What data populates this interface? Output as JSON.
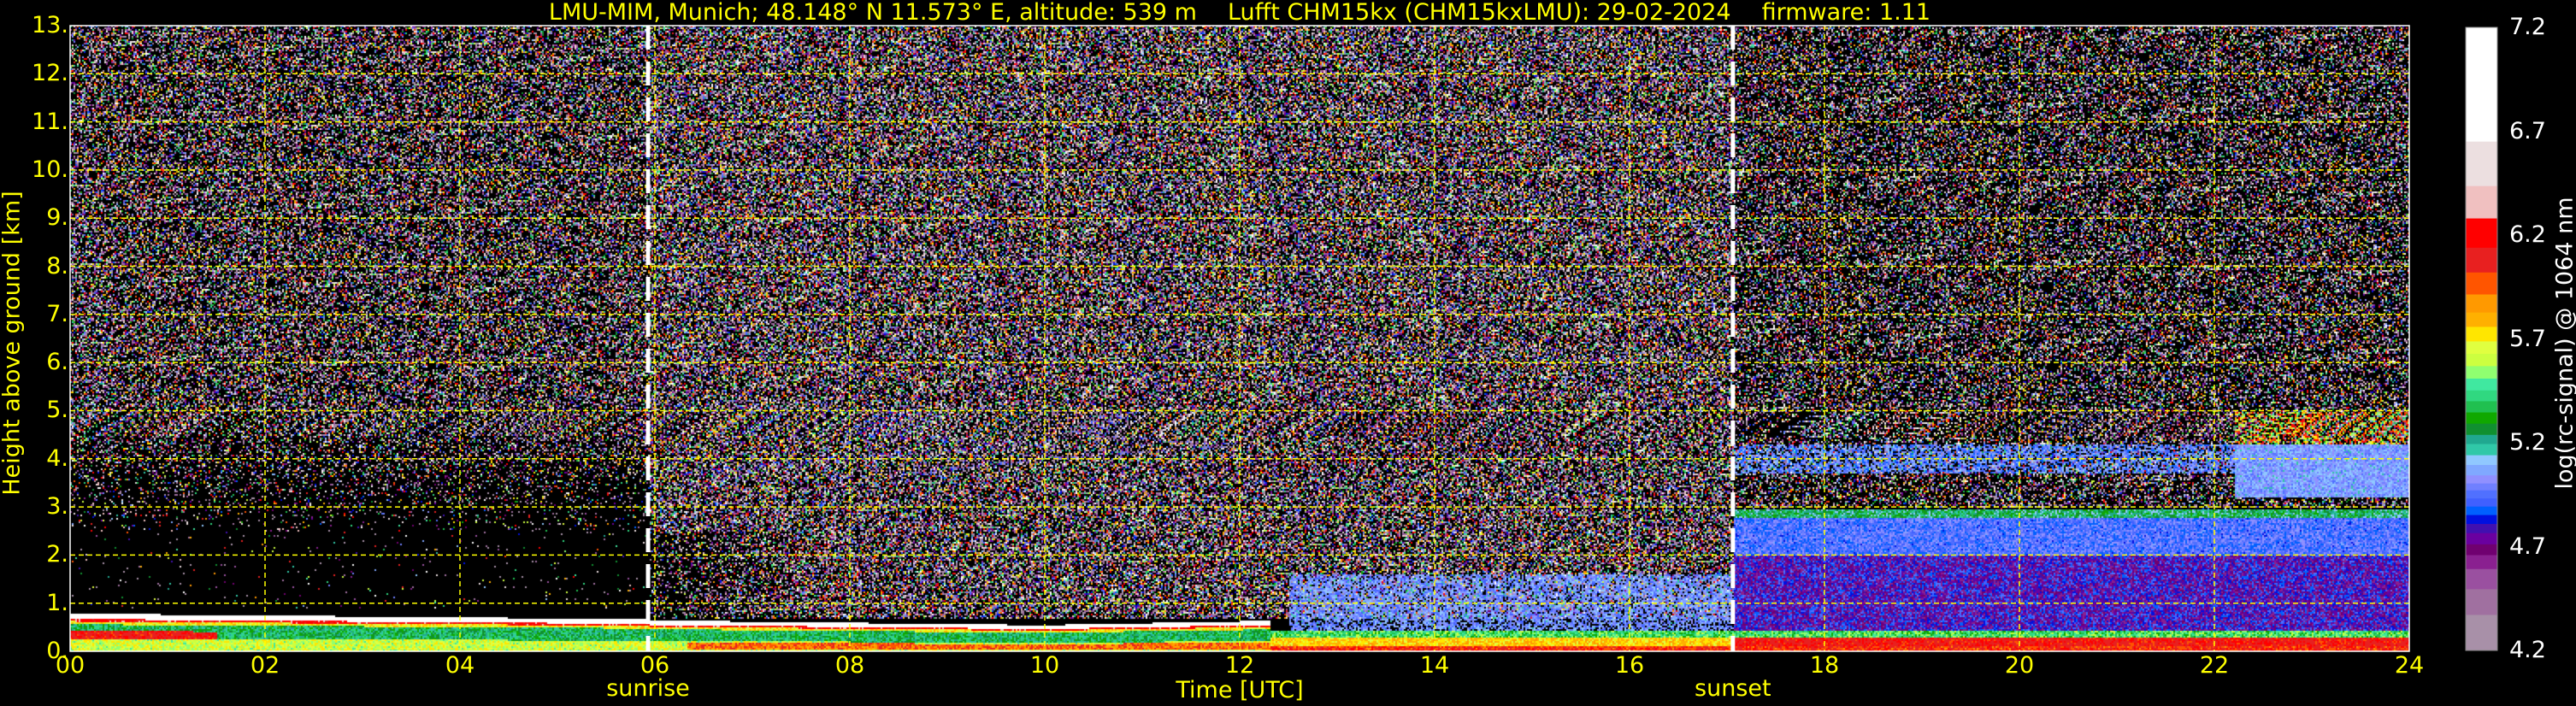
{
  "title": {
    "site": "LMU-MIM, Munich; 48.148° N 11.573° E, altitude: 539 m",
    "instrument": "Lufft CHM15kx (CHM15kxLMU): 29-02-2024",
    "firmware": "firmware: 1.11"
  },
  "chart_data": {
    "type": "heatmap",
    "xlabel": "Time [UTC]",
    "ylabel": "Height above ground [km]",
    "xlim": [
      0,
      24
    ],
    "ylim": [
      0,
      13
    ],
    "x_ticks": [
      {
        "value": 0,
        "label": "00"
      },
      {
        "value": 2,
        "label": "02"
      },
      {
        "value": 4,
        "label": "04"
      },
      {
        "value": 6,
        "label": "06"
      },
      {
        "value": 8,
        "label": "08"
      },
      {
        "value": 10,
        "label": "10"
      },
      {
        "value": 12,
        "label": "12"
      },
      {
        "value": 14,
        "label": "14"
      },
      {
        "value": 16,
        "label": "16"
      },
      {
        "value": 18,
        "label": "18"
      },
      {
        "value": 20,
        "label": "20"
      },
      {
        "value": 22,
        "label": "22"
      },
      {
        "value": 24,
        "label": "24"
      }
    ],
    "y_ticks": [
      {
        "value": 0,
        "label": "0."
      },
      {
        "value": 1,
        "label": "1."
      },
      {
        "value": 2,
        "label": "2."
      },
      {
        "value": 3,
        "label": "3."
      },
      {
        "value": 4,
        "label": "4."
      },
      {
        "value": 5,
        "label": "5."
      },
      {
        "value": 6,
        "label": "6."
      },
      {
        "value": 7,
        "label": "7."
      },
      {
        "value": 8,
        "label": "8."
      },
      {
        "value": 9,
        "label": "9."
      },
      {
        "value": 10,
        "label": "10."
      },
      {
        "value": 11,
        "label": "11."
      },
      {
        "value": 12,
        "label": "12."
      },
      {
        "value": 13,
        "label": "13."
      }
    ],
    "grid": true,
    "grid_color": "#ffff00",
    "annotations": [
      {
        "label": "sunrise",
        "time": 5.93
      },
      {
        "label": "sunset",
        "time": 17.06
      }
    ],
    "colorbar": {
      "label": "log(rc-signal) @ 1064 nm",
      "range": [
        4.2,
        7.2
      ],
      "ticks": [
        "4.2",
        "4.7",
        "5.2",
        "5.7",
        "6.2",
        "6.7",
        "7.2"
      ],
      "levels": [
        {
          "from": 4.2,
          "to": 4.373,
          "color": "#a890a8"
        },
        {
          "from": 4.373,
          "to": 4.497,
          "color": "#a070a0"
        },
        {
          "from": 4.497,
          "to": 4.594,
          "color": "#9a50a0"
        },
        {
          "from": 4.594,
          "to": 4.661,
          "color": "#8a2090"
        },
        {
          "from": 4.661,
          "to": 4.713,
          "color": "#700070"
        },
        {
          "from": 4.713,
          "to": 4.767,
          "color": "#6a00a0"
        },
        {
          "from": 4.767,
          "to": 4.811,
          "color": "#4010b0"
        },
        {
          "from": 4.811,
          "to": 4.854,
          "color": "#0010e0"
        },
        {
          "from": 4.854,
          "to": 4.895,
          "color": "#0060ff"
        },
        {
          "from": 4.895,
          "to": 4.934,
          "color": "#4060ff"
        },
        {
          "from": 4.934,
          "to": 4.973,
          "color": "#5070ff"
        },
        {
          "from": 4.973,
          "to": 5.006,
          "color": "#7080ff"
        },
        {
          "from": 5.006,
          "to": 5.045,
          "color": "#9090ff"
        },
        {
          "from": 5.045,
          "to": 5.095,
          "color": "#80a8ff"
        },
        {
          "from": 5.095,
          "to": 5.142,
          "color": "#90c8ff"
        },
        {
          "from": 5.142,
          "to": 5.196,
          "color": "#30c8a8"
        },
        {
          "from": 5.196,
          "to": 5.24,
          "color": "#20a890"
        },
        {
          "from": 5.24,
          "to": 5.294,
          "color": "#109030"
        },
        {
          "from": 5.294,
          "to": 5.348,
          "color": "#10a800"
        },
        {
          "from": 5.348,
          "to": 5.402,
          "color": "#20c050"
        },
        {
          "from": 5.402,
          "to": 5.454,
          "color": "#30d880"
        },
        {
          "from": 5.454,
          "to": 5.511,
          "color": "#40e8a0"
        },
        {
          "from": 5.511,
          "to": 5.571,
          "color": "#90ff70"
        },
        {
          "from": 5.571,
          "to": 5.63,
          "color": "#ccff40"
        },
        {
          "from": 5.63,
          "to": 5.69,
          "color": "#e0ff40"
        },
        {
          "from": 5.69,
          "to": 5.76,
          "color": "#ffe600"
        },
        {
          "from": 5.76,
          "to": 5.829,
          "color": "#ffb000"
        },
        {
          "from": 5.829,
          "to": 5.916,
          "color": "#ff9900"
        },
        {
          "from": 5.916,
          "to": 6.022,
          "color": "#ff5500"
        },
        {
          "from": 6.022,
          "to": 6.141,
          "color": "#e82020"
        },
        {
          "from": 6.141,
          "to": 6.282,
          "color": "#ff0000"
        },
        {
          "from": 6.282,
          "to": 6.438,
          "color": "#f0c0c0"
        },
        {
          "from": 6.438,
          "to": 6.652,
          "color": "#ecdfe0"
        },
        {
          "from": 6.652,
          "to": 7.2,
          "color": "#ffffff"
        }
      ]
    }
  }
}
